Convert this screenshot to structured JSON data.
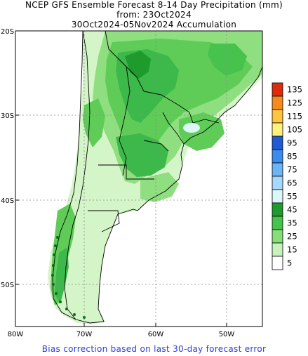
{
  "title": {
    "line1": "NCEP GFS Ensemble Forecast 8-14 Day Precipitation (mm)",
    "line2": "from: 23Oct2024",
    "line3": "30Oct2024-05Nov2024 Accumulation"
  },
  "axes": {
    "lat_labels": [
      "20S",
      "30S",
      "40S",
      "50S"
    ],
    "lon_labels": [
      "80W",
      "70W",
      "60W",
      "50W"
    ]
  },
  "legend": {
    "levels": [
      "135",
      "125",
      "115",
      "105",
      "95",
      "85",
      "75",
      "65",
      "55",
      "45",
      "35",
      "25",
      "15",
      "5"
    ],
    "colors": [
      "#e02a0e",
      "#f78a1e",
      "#fdc53c",
      "#fff17b",
      "#1f5ad4",
      "#3c8cf0",
      "#6cb5f5",
      "#a5d8fa",
      "#dcf7f8",
      "#1e9b2c",
      "#47c24d",
      "#86de78",
      "#c8f2bd",
      "#ffffff"
    ]
  },
  "footer": "Bias correction based on last 30-day forecast error"
}
